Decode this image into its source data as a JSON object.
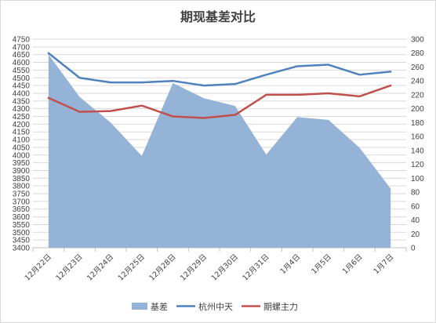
{
  "chart_data": {
    "type": "line",
    "title": "期现基差对比",
    "categories": [
      "12月22日",
      "12月23日",
      "12月24日",
      "12月25日",
      "12月28日",
      "12月29日",
      "12月30日",
      "12月31日",
      "1月4日",
      "1月5日",
      "1月6日",
      "1月7日"
    ],
    "series": [
      {
        "name": "基差",
        "type": "area",
        "axis": "right",
        "color": "#95b3d7",
        "values": [
          278,
          217,
          180,
          132,
          237,
          215,
          204,
          134,
          188,
          184,
          144,
          85
        ]
      },
      {
        "name": "杭州中天",
        "type": "line",
        "axis": "left",
        "color": "#4f81bd",
        "values": [
          4660,
          4500,
          4470,
          4470,
          4480,
          4450,
          4460,
          4520,
          4575,
          4585,
          4520,
          4540
        ]
      },
      {
        "name": "期螺主力",
        "type": "line",
        "axis": "left",
        "color": "#c0504d",
        "values": [
          4370,
          4280,
          4285,
          4320,
          4250,
          4240,
          4260,
          4390,
          4390,
          4400,
          4380,
          4450
        ]
      }
    ],
    "y_left": {
      "min": 3400,
      "max": 4750,
      "step": 50
    },
    "y_right": {
      "min": 0,
      "max": 300,
      "step": 20
    },
    "grid": true,
    "legend": "bottom"
  }
}
